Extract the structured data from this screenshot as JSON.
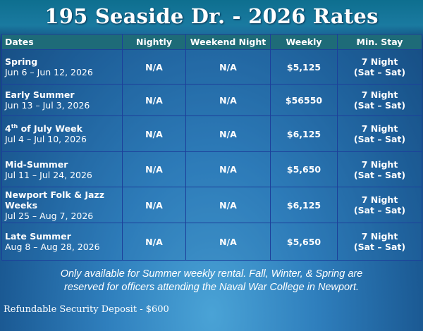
{
  "title": "195 Seaside Dr. - 2026 Rates",
  "table": {
    "headers": [
      "Dates",
      "Nightly",
      "Weekend Night",
      "Weekly",
      "Min. Stay"
    ],
    "rows": [
      {
        "season": "Spring",
        "season_suffix": "",
        "range": "Jun 6 – Jun 12, 2026",
        "nightly": "N/A",
        "weekend": "N/A",
        "weekly": "$5,125",
        "min1": "7 Night",
        "min2": "(Sat – Sat)"
      },
      {
        "season": "Early Summer",
        "season_suffix": "",
        "range": "Jun 13 – Jul 3, 2026",
        "nightly": "N/A",
        "weekend": "N/A",
        "weekly": "$56550",
        "min1": "7 Night",
        "min2": "(Sat – Sat)"
      },
      {
        "season": "4",
        "season_sup": "th",
        "season_suffix": " of July Week",
        "range": "Jul 4 – Jul 10, 2026",
        "nightly": "N/A",
        "weekend": "N/A",
        "weekly": "$6,125",
        "min1": "7 Night",
        "min2": "(Sat – Sat)"
      },
      {
        "season": "Mid-Summer",
        "season_suffix": "",
        "range": "Jul 11 – Jul 24, 2026",
        "nightly": "N/A",
        "weekend": "N/A",
        "weekly": "$5,650",
        "min1": "7 Night",
        "min2": "(Sat – Sat)"
      },
      {
        "season": "Newport Folk & Jazz Weeks",
        "season_suffix": "",
        "range": "Jul 25 – Aug 7, 2026",
        "nightly": "N/A",
        "weekend": "N/A",
        "weekly": "$6,125",
        "min1": "7 Night",
        "min2": "(Sat – Sat)"
      },
      {
        "season": "Late Summer",
        "season_suffix": "",
        "range": "Aug 8 – Aug 28, 2026",
        "nightly": "N/A",
        "weekend": "N/A",
        "weekly": "$5,650",
        "min1": "7 Night",
        "min2": "(Sat – Sat)"
      }
    ]
  },
  "note_line1": "Only available for Summer weekly rental.  Fall, Winter, & Spring are",
  "note_line2": "reserved for officers attending the Naval War College in Newport.",
  "deposit": "Refundable Security Deposit - $600",
  "colors": {
    "header_bg": "#1e6b78",
    "border": "#1c3f9a"
  }
}
